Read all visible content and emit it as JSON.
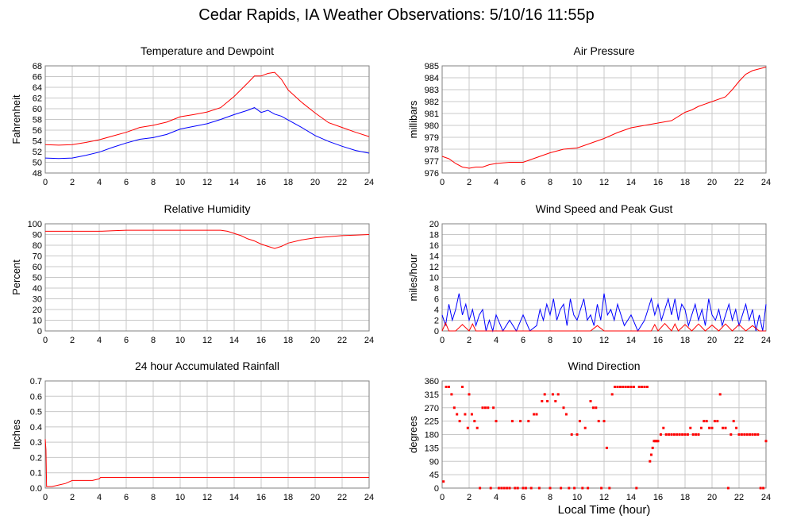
{
  "title": "Cedar Rapids, IA Weather Observations: 5/10/16 11:55p",
  "xlabel_common": "Local Time (hour)",
  "colors": {
    "red": "#ff0000",
    "blue": "#0000ff",
    "grid": "#c8c8c8",
    "frame": "#808080"
  },
  "chart_data": [
    {
      "type": "line",
      "title": "Temperature and Dewpoint",
      "ylabel": "Fahrenheit",
      "xlim": [
        0,
        24
      ],
      "ylim": [
        48,
        68
      ],
      "xticks": [
        0,
        2,
        4,
        6,
        8,
        10,
        12,
        14,
        16,
        18,
        20,
        22,
        24
      ],
      "yticks": [
        48,
        50,
        52,
        54,
        56,
        58,
        60,
        62,
        64,
        66,
        68
      ],
      "series": [
        {
          "color": "#ff0000",
          "x": [
            0,
            1,
            2,
            3,
            4,
            5,
            6,
            7,
            8,
            9,
            10,
            11,
            12,
            13,
            14,
            15,
            15.5,
            16,
            16.5,
            17,
            17.5,
            18,
            19,
            20,
            21,
            22,
            23,
            24
          ],
          "y": [
            53.3,
            53.2,
            53.3,
            53.7,
            54.2,
            54.9,
            55.6,
            56.5,
            56.9,
            57.5,
            58.5,
            58.9,
            59.4,
            60.2,
            62.3,
            64.8,
            66.1,
            66.1,
            66.6,
            66.8,
            65.5,
            63.5,
            61.2,
            59.2,
            57.4,
            56.5,
            55.6,
            54.8
          ]
        },
        {
          "color": "#0000ff",
          "x": [
            0,
            1,
            2,
            3,
            4,
            5,
            6,
            7,
            8,
            9,
            10,
            11,
            12,
            13,
            14,
            15,
            15.5,
            16,
            16.5,
            17,
            17.5,
            18,
            19,
            20,
            21,
            22,
            23,
            24
          ],
          "y": [
            50.8,
            50.7,
            50.8,
            51.3,
            51.9,
            52.8,
            53.6,
            54.3,
            54.6,
            55.2,
            56.2,
            56.7,
            57.2,
            58,
            58.9,
            59.7,
            60.2,
            59.3,
            59.7,
            59,
            58.6,
            57.9,
            56.5,
            55,
            53.9,
            53,
            52.2,
            51.7
          ]
        }
      ]
    },
    {
      "type": "line",
      "title": "Air Pressure",
      "ylabel": "millibars",
      "xlim": [
        0,
        24
      ],
      "ylim": [
        976,
        985
      ],
      "xticks": [
        0,
        2,
        4,
        6,
        8,
        10,
        12,
        14,
        16,
        18,
        20,
        22,
        24
      ],
      "yticks": [
        976,
        977,
        978,
        979,
        980,
        981,
        982,
        983,
        984,
        985
      ],
      "series": [
        {
          "color": "#ff0000",
          "x": [
            0,
            0.5,
            1,
            1.5,
            2,
            2.5,
            3,
            3.5,
            4,
            5,
            6,
            7,
            8,
            9,
            10,
            11,
            12,
            13,
            14,
            15,
            16,
            17,
            18,
            18.5,
            19,
            20,
            21,
            21.5,
            22,
            22.5,
            23,
            24
          ],
          "y": [
            977.4,
            977.2,
            976.8,
            976.5,
            976.4,
            976.5,
            976.5,
            976.7,
            976.8,
            976.9,
            976.9,
            977.3,
            977.7,
            978.0,
            978.1,
            978.5,
            978.9,
            979.4,
            979.8,
            980.0,
            980.2,
            980.4,
            981.1,
            981.3,
            981.6,
            982.0,
            982.4,
            983.0,
            983.7,
            984.3,
            984.6,
            984.9
          ]
        }
      ]
    },
    {
      "type": "line",
      "title": "Relative Humidity",
      "ylabel": "Percent",
      "xlim": [
        0,
        24
      ],
      "ylim": [
        0,
        100
      ],
      "xticks": [
        0,
        2,
        4,
        6,
        8,
        10,
        12,
        14,
        16,
        18,
        20,
        22,
        24
      ],
      "yticks": [
        0,
        10,
        20,
        30,
        40,
        50,
        60,
        70,
        80,
        90,
        100
      ],
      "series": [
        {
          "color": "#ff0000",
          "x": [
            0,
            1,
            2,
            3,
            4,
            5,
            6,
            7,
            8,
            9,
            10,
            11,
            12,
            13,
            13.5,
            14,
            14.5,
            15,
            15.5,
            16,
            16.5,
            17,
            17.5,
            18,
            19,
            20,
            21,
            22,
            23,
            24
          ],
          "y": [
            93,
            93,
            93,
            93,
            93,
            93.5,
            94,
            94,
            94,
            94,
            94,
            94,
            94,
            94,
            93,
            91,
            89,
            86,
            84,
            81,
            79,
            77,
            79,
            82,
            85,
            87,
            88,
            89,
            89.5,
            90
          ]
        }
      ]
    },
    {
      "type": "line",
      "title": "Wind Speed and Peak Gust",
      "ylabel": "miles/hour",
      "xlim": [
        0,
        24
      ],
      "ylim": [
        0,
        20
      ],
      "xticks": [
        0,
        2,
        4,
        6,
        8,
        10,
        12,
        14,
        16,
        18,
        20,
        22,
        24
      ],
      "yticks": [
        0,
        2,
        4,
        6,
        8,
        10,
        12,
        14,
        16,
        18,
        20
      ],
      "series": [
        {
          "color": "#0000ff",
          "x": [
            0,
            0.25,
            0.5,
            0.75,
            1,
            1.25,
            1.5,
            1.75,
            2,
            2.25,
            2.5,
            2.75,
            3,
            3.25,
            3.5,
            3.75,
            4,
            4.5,
            5,
            5.5,
            6,
            6.5,
            7,
            7.25,
            7.5,
            7.75,
            8,
            8.25,
            8.5,
            8.75,
            9,
            9.25,
            9.5,
            9.75,
            10,
            10.25,
            10.5,
            10.75,
            11,
            11.25,
            11.5,
            11.75,
            12,
            12.25,
            12.5,
            12.75,
            13,
            13.5,
            14,
            14.5,
            15,
            15.25,
            15.5,
            15.75,
            16,
            16.25,
            16.5,
            16.75,
            17,
            17.25,
            17.5,
            17.75,
            18,
            18.25,
            18.5,
            18.75,
            19,
            19.25,
            19.5,
            19.75,
            20,
            20.25,
            20.5,
            20.75,
            21,
            21.25,
            21.5,
            21.75,
            22,
            22.25,
            22.5,
            22.75,
            23,
            23.25,
            23.5,
            23.75,
            24
          ],
          "y": [
            3,
            1,
            5,
            2,
            4,
            7,
            3,
            5,
            2,
            4,
            1,
            3,
            4,
            0,
            2,
            0,
            3,
            0,
            2,
            0,
            3,
            0,
            1,
            4,
            2,
            5,
            3,
            6,
            2,
            4,
            5,
            1,
            6,
            3,
            2,
            4,
            6,
            2,
            3,
            1,
            5,
            2,
            7,
            3,
            4,
            2,
            5,
            1,
            3,
            0,
            2,
            4,
            6,
            3,
            5,
            2,
            4,
            6,
            3,
            6,
            2,
            5,
            4,
            1,
            3,
            5,
            2,
            4,
            1,
            6,
            3,
            2,
            4,
            1,
            3,
            5,
            2,
            4,
            1,
            3,
            5,
            2,
            4,
            0,
            3,
            0,
            5
          ]
        },
        {
          "color": "#ff0000",
          "x": [
            0,
            0.25,
            0.5,
            1,
            1.5,
            2,
            2.25,
            2.5,
            3,
            4,
            5,
            6,
            7,
            8,
            9,
            10,
            11,
            11.5,
            12,
            13,
            14,
            15,
            15.5,
            15.75,
            16,
            16.5,
            17,
            17.25,
            17.5,
            18,
            18.5,
            19,
            19.5,
            20,
            20.5,
            21,
            21.5,
            22,
            22.5,
            23,
            23.5,
            24
          ],
          "y": [
            0,
            1.5,
            0,
            0,
            1.2,
            0,
            1.3,
            0,
            0,
            0,
            0,
            0,
            0,
            0,
            0,
            0,
            0,
            1,
            0,
            0,
            0,
            0,
            0,
            1.2,
            0,
            1.4,
            0,
            1.3,
            0,
            1.2,
            0,
            1.3,
            0,
            1.1,
            0,
            1.3,
            0,
            1.2,
            0,
            1,
            0,
            0
          ]
        }
      ]
    },
    {
      "type": "line",
      "title": "24 hour Accumulated Rainfall",
      "ylabel": "Inches",
      "xlim": [
        0,
        24
      ],
      "ylim": [
        0,
        0.7
      ],
      "xticks": [
        0,
        2,
        4,
        6,
        8,
        10,
        12,
        14,
        16,
        18,
        20,
        22,
        24
      ],
      "yticks": [
        0.0,
        0.1,
        0.2,
        0.3,
        0.4,
        0.5,
        0.6,
        0.7
      ],
      "ytick_labels": [
        "0.0",
        "0.1",
        "0.2",
        "0.3",
        "0.4",
        "0.5",
        "0.6",
        "0.7"
      ],
      "series": [
        {
          "color": "#ff0000",
          "x": [
            0,
            0.05,
            0.1,
            0.2,
            0.5,
            1,
            1.5,
            2,
            2.5,
            3,
            3.5,
            4,
            4.1,
            4.5,
            6,
            8,
            10,
            12,
            14,
            16,
            18,
            20,
            22,
            24
          ],
          "y": [
            0.32,
            0.25,
            0.01,
            0.01,
            0.01,
            0.02,
            0.03,
            0.05,
            0.05,
            0.05,
            0.05,
            0.06,
            0.07,
            0.07,
            0.07,
            0.07,
            0.07,
            0.07,
            0.07,
            0.07,
            0.07,
            0.07,
            0.07,
            0.07
          ]
        }
      ]
    },
    {
      "type": "scatter",
      "title": "Wind Direction",
      "ylabel": "degrees",
      "xlabel": "Local Time (hour)",
      "xlim": [
        0,
        24
      ],
      "ylim": [
        0,
        360
      ],
      "xticks": [
        0,
        2,
        4,
        6,
        8,
        10,
        12,
        14,
        16,
        18,
        20,
        22,
        24
      ],
      "yticks": [
        0,
        45,
        90,
        135,
        180,
        225,
        270,
        315,
        360
      ],
      "series": [
        {
          "color": "#ff0000",
          "x": [
            0.1,
            0.3,
            0.5,
            0.7,
            0.9,
            1.1,
            1.3,
            1.5,
            1.7,
            1.9,
            2.0,
            2.2,
            2.4,
            2.6,
            2.8,
            3.0,
            3.2,
            3.4,
            3.6,
            3.8,
            4.0,
            4.2,
            4.4,
            4.6,
            4.8,
            5.0,
            5.2,
            5.4,
            5.6,
            5.8,
            6.0,
            6.2,
            6.4,
            6.6,
            6.8,
            7.0,
            7.2,
            7.4,
            7.6,
            7.8,
            8.0,
            8.2,
            8.4,
            8.6,
            8.8,
            9.0,
            9.2,
            9.4,
            9.6,
            9.8,
            10.0,
            10.2,
            10.4,
            10.6,
            10.8,
            11.0,
            11.2,
            11.4,
            11.6,
            11.8,
            12.0,
            12.2,
            12.4,
            12.6,
            12.8,
            13.0,
            13.2,
            13.4,
            13.6,
            13.8,
            14.0,
            14.2,
            14.4,
            14.6,
            14.8,
            15.0,
            15.2,
            15.4,
            15.5,
            15.6,
            15.7,
            15.8,
            15.9,
            16.0,
            16.2,
            16.4,
            16.6,
            16.8,
            17.0,
            17.2,
            17.4,
            17.6,
            17.8,
            18.0,
            18.2,
            18.4,
            18.6,
            18.8,
            19.0,
            19.2,
            19.4,
            19.6,
            19.8,
            20.0,
            20.2,
            20.4,
            20.6,
            20.8,
            21.0,
            21.2,
            21.4,
            21.6,
            21.8,
            22.0,
            22.2,
            22.4,
            22.6,
            22.8,
            23.0,
            23.2,
            23.4,
            23.6,
            23.8,
            24.0
          ],
          "y": [
            22,
            340,
            340,
            315,
            270,
            248,
            225,
            340,
            248,
            202,
            315,
            248,
            225,
            202,
            0,
            270,
            270,
            270,
            0,
            270,
            225,
            0,
            0,
            0,
            0,
            0,
            225,
            0,
            0,
            225,
            0,
            0,
            225,
            0,
            248,
            248,
            0,
            292,
            315,
            292,
            0,
            315,
            292,
            315,
            0,
            270,
            248,
            0,
            180,
            0,
            180,
            225,
            0,
            202,
            0,
            292,
            270,
            270,
            225,
            0,
            225,
            135,
            0,
            315,
            340,
            340,
            340,
            340,
            340,
            340,
            340,
            340,
            0,
            340,
            340,
            340,
            340,
            90,
            112,
            135,
            158,
            158,
            158,
            158,
            180,
            202,
            180,
            180,
            180,
            180,
            180,
            180,
            180,
            180,
            180,
            202,
            180,
            180,
            180,
            202,
            225,
            225,
            202,
            202,
            225,
            225,
            315,
            202,
            202,
            0,
            180,
            225,
            202,
            180,
            180,
            180,
            180,
            180,
            180,
            180,
            180,
            0,
            0,
            158
          ]
        }
      ]
    }
  ]
}
